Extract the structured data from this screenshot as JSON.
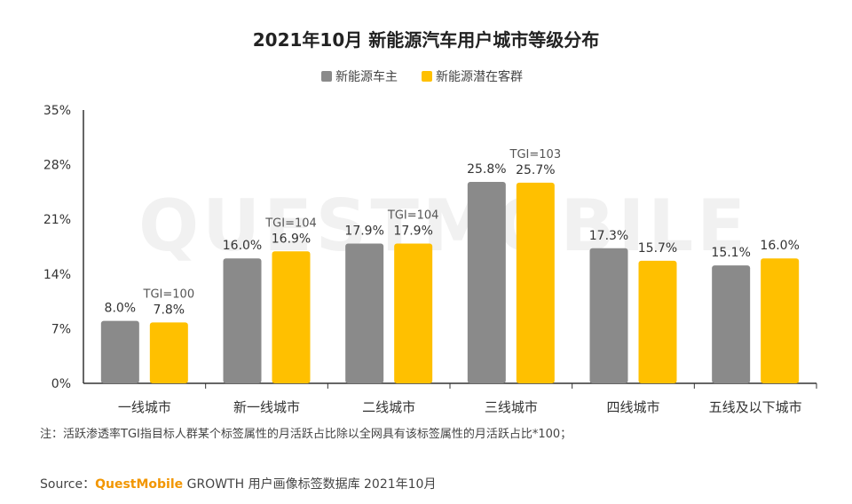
{
  "chart_data": {
    "type": "bar",
    "title": "2021年10月 新能源汽车用户城市等级分布",
    "categories": [
      "一线城市",
      "新一线城市",
      "二线城市",
      "三线城市",
      "四线城市",
      "五线及以下城市"
    ],
    "series": [
      {
        "name": "新能源车主",
        "values": [
          8.0,
          16.0,
          17.9,
          25.8,
          17.3,
          15.1
        ],
        "labels": [
          "8.0%",
          "16.0%",
          "17.9%",
          "25.8%",
          "17.3%",
          "15.1%"
        ],
        "color": "#8a8a8a"
      },
      {
        "name": "新能源潜在客群",
        "values": [
          7.8,
          16.9,
          17.9,
          25.7,
          15.7,
          16.0
        ],
        "labels": [
          "7.8%",
          "16.9%",
          "17.9%",
          "25.7%",
          "15.7%",
          "16.0%"
        ],
        "color": "#ffc000"
      }
    ],
    "tgi_labels": [
      "TGI=100",
      "TGI=104",
      "TGI=104",
      "TGI=103",
      "",
      ""
    ],
    "yticks": [
      "0%",
      "7%",
      "14%",
      "21%",
      "28%",
      "35%"
    ],
    "ylim": [
      0,
      35
    ],
    "xlabel": "",
    "ylabel": "",
    "grid": false,
    "legend_position": "top-center"
  },
  "watermark": "QUESTMOBILE",
  "note": "注：活跃渗透率TGI指目标人群某个标签属性的月活跃占比除以全网具有该标签属性的月活跃占比*100；",
  "source": {
    "prefix": "Source：",
    "brand": "QuestMobile",
    "rest": " GROWTH 用户画像标签数据库 2021年10月"
  }
}
